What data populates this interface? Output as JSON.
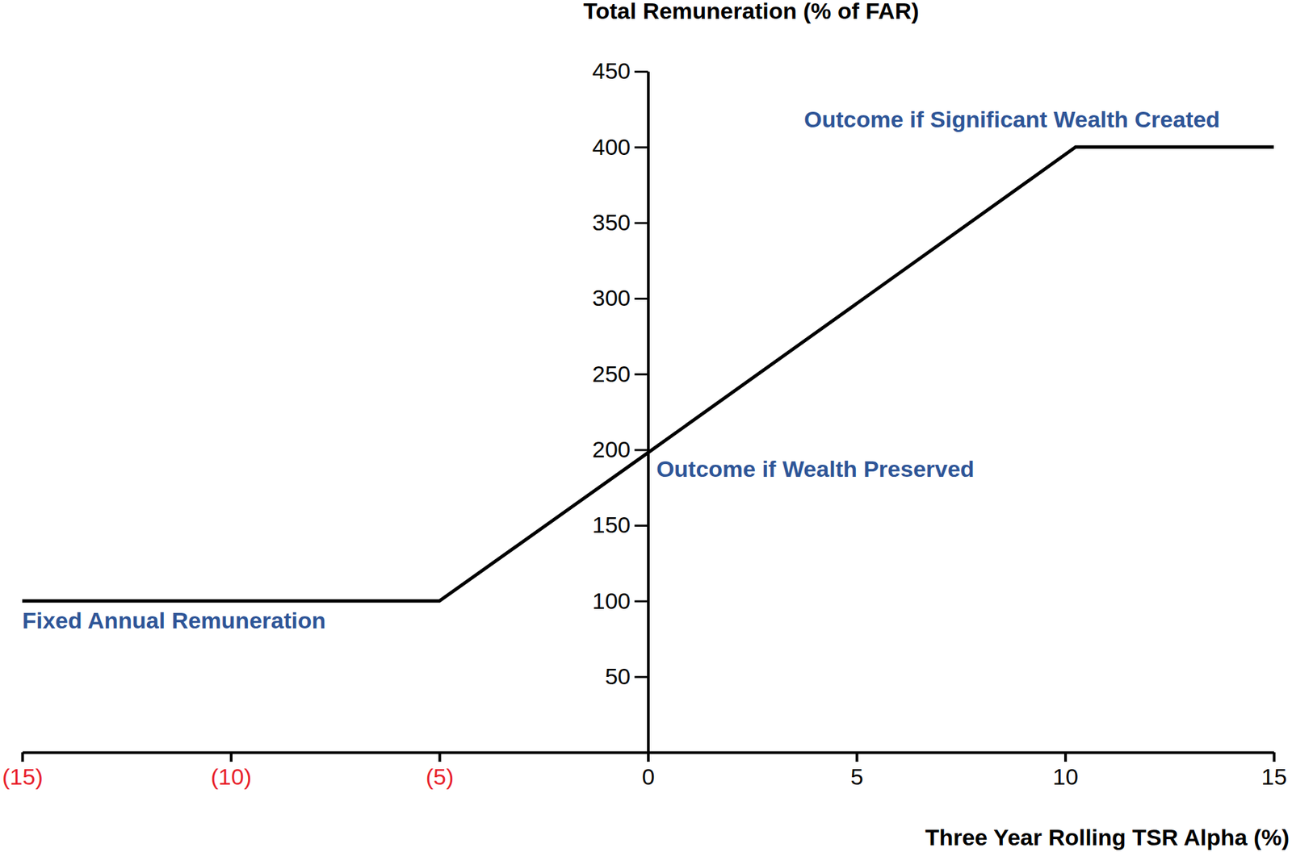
{
  "chart_data": {
    "type": "line",
    "title": "Total Remuneration (% of FAR)",
    "x_label": "Three Year Rolling TSR Alpha (%)",
    "x": [
      -15,
      -5,
      0,
      10.25,
      15
    ],
    "values": [
      100,
      100,
      198,
      400,
      400
    ],
    "color": "#000000",
    "xlim": [
      -15,
      15
    ],
    "xticks": [
      {
        "value": -15,
        "label": "(15)"
      },
      {
        "value": -10,
        "label": "(10)"
      },
      {
        "value": -5,
        "label": "(5)"
      },
      0,
      5,
      10,
      15
    ],
    "ylim": [
      0,
      450
    ],
    "yticks": [
      50,
      100,
      150,
      200,
      250,
      300,
      350,
      400,
      450
    ],
    "grid": false,
    "annotations": [
      {
        "text": "Fixed Annual Remuneration",
        "x": -15,
        "y": 82
      },
      {
        "text": "Outcome if Wealth Preserved",
        "x": 0.2,
        "y": 182
      },
      {
        "text": "Outcome if Significant Wealth Created",
        "x": 3.74,
        "y": 413
      }
    ]
  }
}
